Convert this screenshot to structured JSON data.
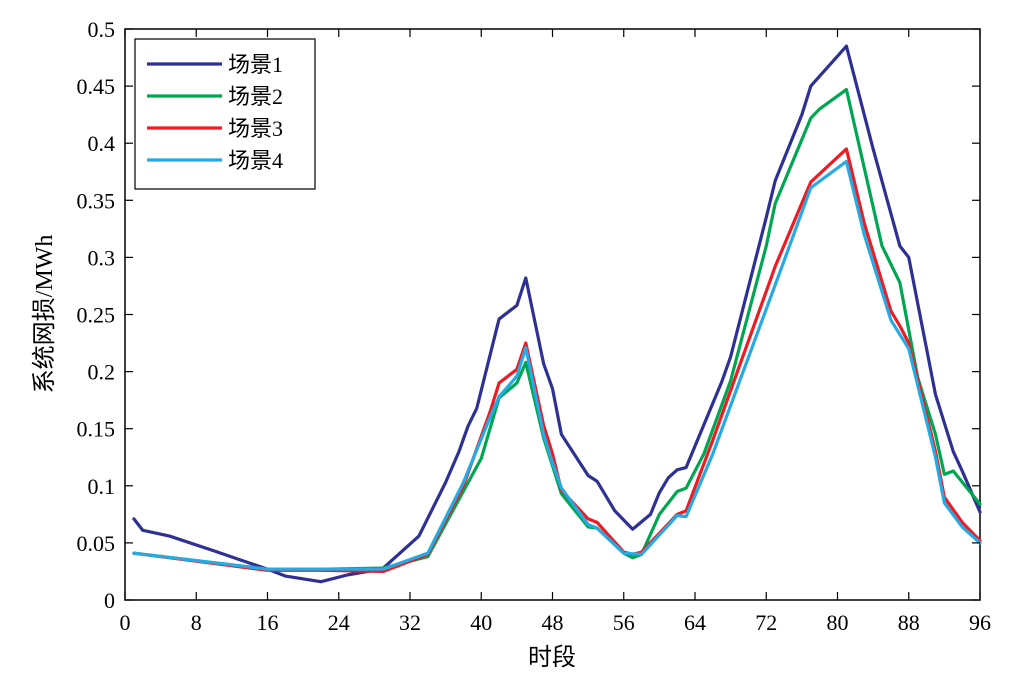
{
  "chart_data": {
    "type": "line",
    "title": "",
    "xlabel": "时段",
    "ylabel": "系统网损/MWh",
    "xlim": [
      0,
      96
    ],
    "ylim": [
      0,
      0.5
    ],
    "xticks": [
      0,
      8,
      16,
      24,
      32,
      40,
      48,
      56,
      64,
      72,
      80,
      88,
      96
    ],
    "yticks": [
      0,
      0.05,
      0.1,
      0.15,
      0.2,
      0.25,
      0.3,
      0.35,
      0.4,
      0.45,
      0.5
    ],
    "xtick_labels": [
      "0",
      "8",
      "16",
      "24",
      "32",
      "40",
      "48",
      "56",
      "64",
      "72",
      "80",
      "88",
      "96"
    ],
    "ytick_labels": [
      "0",
      "0.05",
      "0.1",
      "0.15",
      "0.2",
      "0.25",
      "0.3",
      "0.35",
      "0.4",
      "0.45",
      "0.5"
    ],
    "grid": false,
    "legend_position": "top-left",
    "series": [
      {
        "name": "场景1",
        "color": "#2e3192",
        "points": [
          [
            1,
            0.071
          ],
          [
            2,
            0.061
          ],
          [
            5,
            0.056
          ],
          [
            10,
            0.043
          ],
          [
            16,
            0.027
          ],
          [
            18,
            0.021
          ],
          [
            22,
            0.016
          ],
          [
            25,
            0.022
          ],
          [
            28,
            0.026
          ],
          [
            29,
            0.028
          ],
          [
            33,
            0.056
          ],
          [
            36,
            0.103
          ],
          [
            37.5,
            0.13
          ],
          [
            38.5,
            0.152
          ],
          [
            39.5,
            0.168
          ],
          [
            42,
            0.246
          ],
          [
            44,
            0.258
          ],
          [
            45,
            0.282
          ],
          [
            47,
            0.207
          ],
          [
            48,
            0.185
          ],
          [
            49,
            0.145
          ],
          [
            52,
            0.109
          ],
          [
            53,
            0.104
          ],
          [
            55,
            0.078
          ],
          [
            57,
            0.062
          ],
          [
            59,
            0.075
          ],
          [
            60,
            0.094
          ],
          [
            61,
            0.107
          ],
          [
            62,
            0.114
          ],
          [
            63,
            0.116
          ],
          [
            67,
            0.191
          ],
          [
            68,
            0.213
          ],
          [
            72,
            0.335
          ],
          [
            73,
            0.367
          ],
          [
            76,
            0.425
          ],
          [
            77,
            0.45
          ],
          [
            81,
            0.485
          ],
          [
            84,
            0.395
          ],
          [
            87,
            0.31
          ],
          [
            88,
            0.3
          ],
          [
            91,
            0.18
          ],
          [
            93,
            0.13
          ],
          [
            94,
            0.113
          ],
          [
            96,
            0.077
          ]
        ]
      },
      {
        "name": "场景2",
        "color": "#00a651",
        "points": [
          [
            1,
            0.041
          ],
          [
            16,
            0.027
          ],
          [
            22,
            0.027
          ],
          [
            29,
            0.028
          ],
          [
            34,
            0.038
          ],
          [
            40,
            0.124
          ],
          [
            42,
            0.177
          ],
          [
            44,
            0.19
          ],
          [
            45,
            0.208
          ],
          [
            47,
            0.142
          ],
          [
            49,
            0.093
          ],
          [
            52,
            0.064
          ],
          [
            53,
            0.063
          ],
          [
            56,
            0.041
          ],
          [
            57,
            0.037
          ],
          [
            58,
            0.04
          ],
          [
            60,
            0.075
          ],
          [
            62,
            0.095
          ],
          [
            63,
            0.098
          ],
          [
            65,
            0.128
          ],
          [
            68,
            0.192
          ],
          [
            72,
            0.31
          ],
          [
            73,
            0.347
          ],
          [
            77,
            0.422
          ],
          [
            78,
            0.43
          ],
          [
            81,
            0.447
          ],
          [
            85,
            0.31
          ],
          [
            87,
            0.278
          ],
          [
            89,
            0.195
          ],
          [
            91,
            0.145
          ],
          [
            92,
            0.11
          ],
          [
            93,
            0.113
          ],
          [
            96,
            0.084
          ]
        ]
      },
      {
        "name": "场景3",
        "color": "#ed1c24",
        "points": [
          [
            1,
            0.041
          ],
          [
            16,
            0.026
          ],
          [
            22,
            0.026
          ],
          [
            29,
            0.025
          ],
          [
            34,
            0.04
          ],
          [
            38,
            0.1
          ],
          [
            41,
            0.165
          ],
          [
            42,
            0.19
          ],
          [
            44,
            0.202
          ],
          [
            45,
            0.225
          ],
          [
            47,
            0.153
          ],
          [
            48,
            0.128
          ],
          [
            49,
            0.096
          ],
          [
            52,
            0.071
          ],
          [
            53,
            0.068
          ],
          [
            56,
            0.042
          ],
          [
            57,
            0.04
          ],
          [
            58,
            0.042
          ],
          [
            62,
            0.075
          ],
          [
            63,
            0.078
          ],
          [
            66,
            0.14
          ],
          [
            73,
            0.292
          ],
          [
            77,
            0.366
          ],
          [
            81,
            0.395
          ],
          [
            83,
            0.33
          ],
          [
            86,
            0.253
          ],
          [
            87,
            0.24
          ],
          [
            88,
            0.225
          ],
          [
            91,
            0.13
          ],
          [
            92,
            0.09
          ],
          [
            94,
            0.068
          ],
          [
            96,
            0.052
          ]
        ]
      },
      {
        "name": "场景4",
        "color": "#27aae1",
        "points": [
          [
            1,
            0.041
          ],
          [
            16,
            0.027
          ],
          [
            22,
            0.027
          ],
          [
            29,
            0.027
          ],
          [
            34,
            0.041
          ],
          [
            38,
            0.103
          ],
          [
            41,
            0.16
          ],
          [
            42,
            0.178
          ],
          [
            44,
            0.196
          ],
          [
            45,
            0.221
          ],
          [
            47,
            0.145
          ],
          [
            48,
            0.12
          ],
          [
            49,
            0.098
          ],
          [
            52,
            0.066
          ],
          [
            53,
            0.063
          ],
          [
            56,
            0.041
          ],
          [
            58,
            0.04
          ],
          [
            62,
            0.074
          ],
          [
            63,
            0.073
          ],
          [
            66,
            0.128
          ],
          [
            74,
            0.297
          ],
          [
            77,
            0.361
          ],
          [
            81,
            0.384
          ],
          [
            83,
            0.32
          ],
          [
            86,
            0.245
          ],
          [
            88,
            0.22
          ],
          [
            91,
            0.125
          ],
          [
            92,
            0.085
          ],
          [
            94,
            0.064
          ],
          [
            96,
            0.05
          ]
        ]
      }
    ]
  }
}
